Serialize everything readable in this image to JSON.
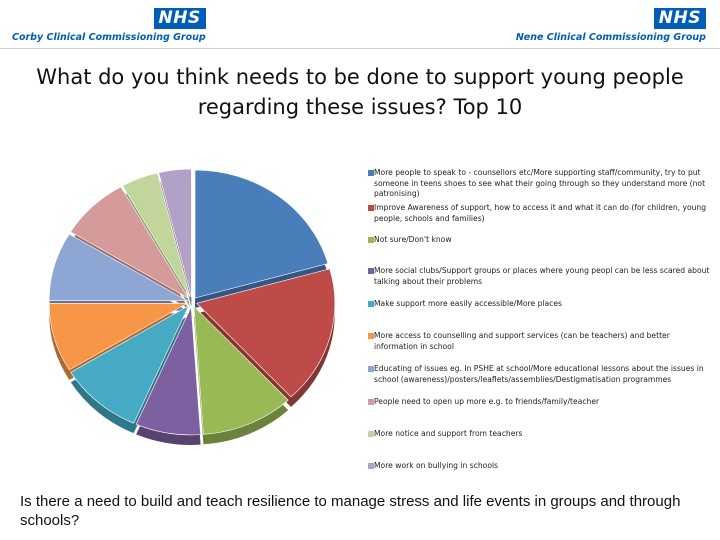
{
  "header": {
    "left_logo": {
      "badge": "NHS",
      "name": "Corby Clinical Commissioning Group"
    },
    "right_logo": {
      "badge": "NHS",
      "name": "Nene Clinical Commissioning Group"
    }
  },
  "slide": {
    "title": "What do you think needs to be done to support young people regarding these issues? Top 10",
    "footer": "Is there a need to build and teach resilience to manage stress and life events in groups and through schools?"
  },
  "chart_data": {
    "type": "pie",
    "title": "",
    "legend_position": "right",
    "categories": [
      "More people to speak to - counsellors etc/More supporting staff/community, try to put someone in teens shoes to see what their going through so they understand more (not patronising)",
      "Improve Awareness of support, how to access it and what it can do (for children, young people, schools and families)",
      "Not sure/Don't know",
      "More social clubs/Support groups or places where young peopl can be less scared about talking about their problems",
      "Make support more easily accessible/More places",
      "More access to counselling and support services (can be teachers) and better information in school",
      "Educating of issues eg. In PSHE at school/More educational lessons about the issues in school (awareness)/posters/leaflets/assemblies/Destigmatisation programmes",
      "People need to open up more e.g. to friends/family/teacher",
      "More notice and support from teachers",
      "More work on bullying in schools"
    ],
    "values": [
      19,
      16,
      10,
      7,
      9,
      8,
      8,
      7.5,
      4,
      3.5
    ],
    "colors": [
      "#4a7ebb",
      "#be4b48",
      "#98b954",
      "#7d60a0",
      "#46aac5",
      "#f79646",
      "#8ea6d4",
      "#d59b9a",
      "#c2d69b",
      "#b2a1c7"
    ]
  }
}
